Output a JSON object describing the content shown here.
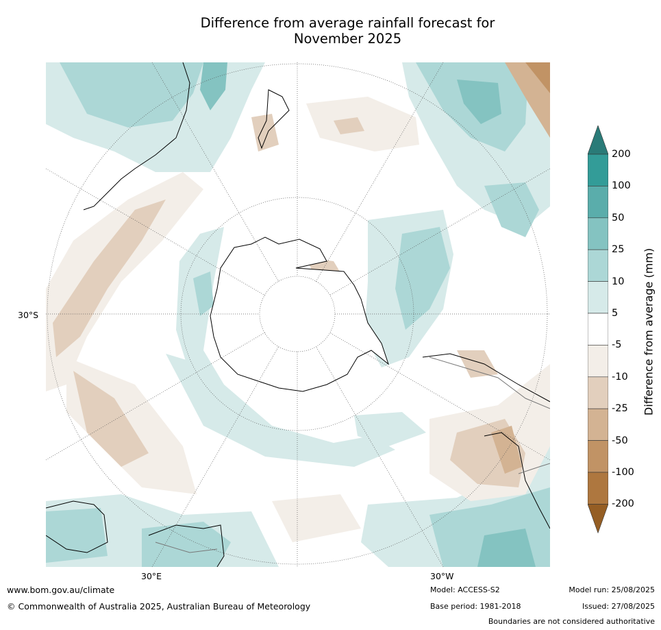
{
  "title": {
    "line1": "Difference from average rainfall forecast for",
    "line2": "November 2025"
  },
  "map": {
    "projection": "south-polar-stereographic",
    "lat_label": "30°S",
    "lon_labels": [
      "30°E",
      "30°W"
    ],
    "land_outline_color": "#000000",
    "border_color": "#777777",
    "graticule_color": "#555555"
  },
  "legend": {
    "title": "Difference from average (mm)",
    "ticks": [
      "200",
      "100",
      "50",
      "25",
      "10",
      "5",
      "-5",
      "-10",
      "-25",
      "-50",
      "-100",
      "-200"
    ],
    "bins": [
      {
        "range": "> 200",
        "color": "#2a7b78"
      },
      {
        "range": "100 to 200",
        "color": "#339c98"
      },
      {
        "range": "50 to 100",
        "color": "#5aadab"
      },
      {
        "range": "25 to 50",
        "color": "#84c3c1"
      },
      {
        "range": "10 to 25",
        "color": "#acd7d6"
      },
      {
        "range": "5 to 10",
        "color": "#d6eae9"
      },
      {
        "range": "-5 to 5",
        "color": "#ffffff"
      },
      {
        "range": "-10 to -5",
        "color": "#f3eee8"
      },
      {
        "range": "-25 to -10",
        "color": "#e2cfbd"
      },
      {
        "range": "-50 to -25",
        "color": "#d3b393"
      },
      {
        "range": "-100 to -50",
        "color": "#c19365"
      },
      {
        "range": "-200 to -100",
        "color": "#ae773f"
      },
      {
        "range": "< -200",
        "color": "#955e24"
      }
    ]
  },
  "footer": {
    "website": "www.bom.gov.au/climate",
    "copyright": "© Commonwealth of Australia 2025, Australian Bureau of Meteorology",
    "model": "Model: ACCESS-S2",
    "base_period": "Base period: 1981-2018",
    "model_run": "Model run: 25/08/2025",
    "issued": "Issued: 27/08/2025",
    "boundaries": "Boundaries are not considered authoritative"
  }
}
